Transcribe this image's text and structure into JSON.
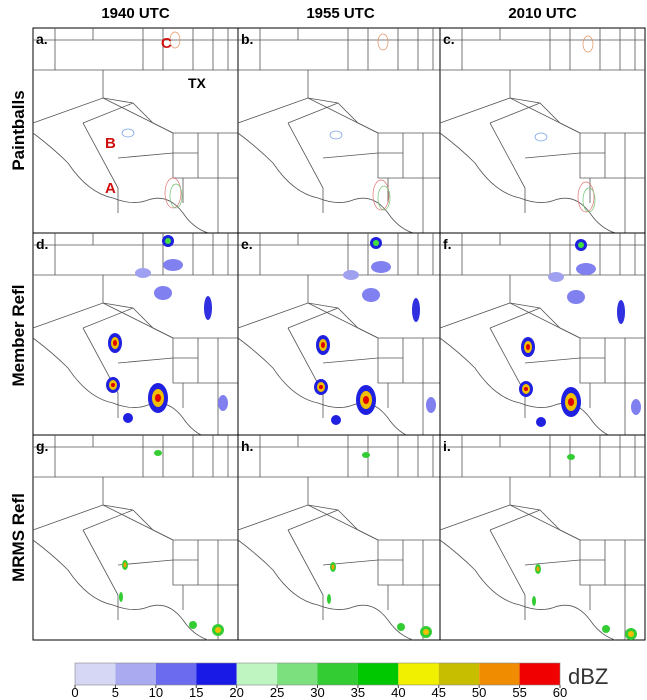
{
  "columns": [
    "1940 UTC",
    "1955 UTC",
    "2010 UTC"
  ],
  "rows": [
    "Paintballs",
    "Member Refl",
    "MRMS Refl"
  ],
  "panels": [
    "a.",
    "b.",
    "c.",
    "d.",
    "e.",
    "f.",
    "g.",
    "h.",
    "i."
  ],
  "annotations": {
    "A": "A",
    "B": "B",
    "C": "C",
    "TX": "TX"
  },
  "colorbar": {
    "ticks": [
      0,
      5,
      10,
      15,
      20,
      25,
      30,
      35,
      40,
      45,
      50,
      55,
      60
    ],
    "colors": [
      "#d6d6f5",
      "#aaaaf0",
      "#6b6bef",
      "#1a1ae6",
      "#bff5c0",
      "#7de07f",
      "#33cc33",
      "#00c800",
      "#f0f000",
      "#c8be00",
      "#f08c00",
      "#f00000",
      "#b40000"
    ],
    "unit": "dBZ"
  }
}
